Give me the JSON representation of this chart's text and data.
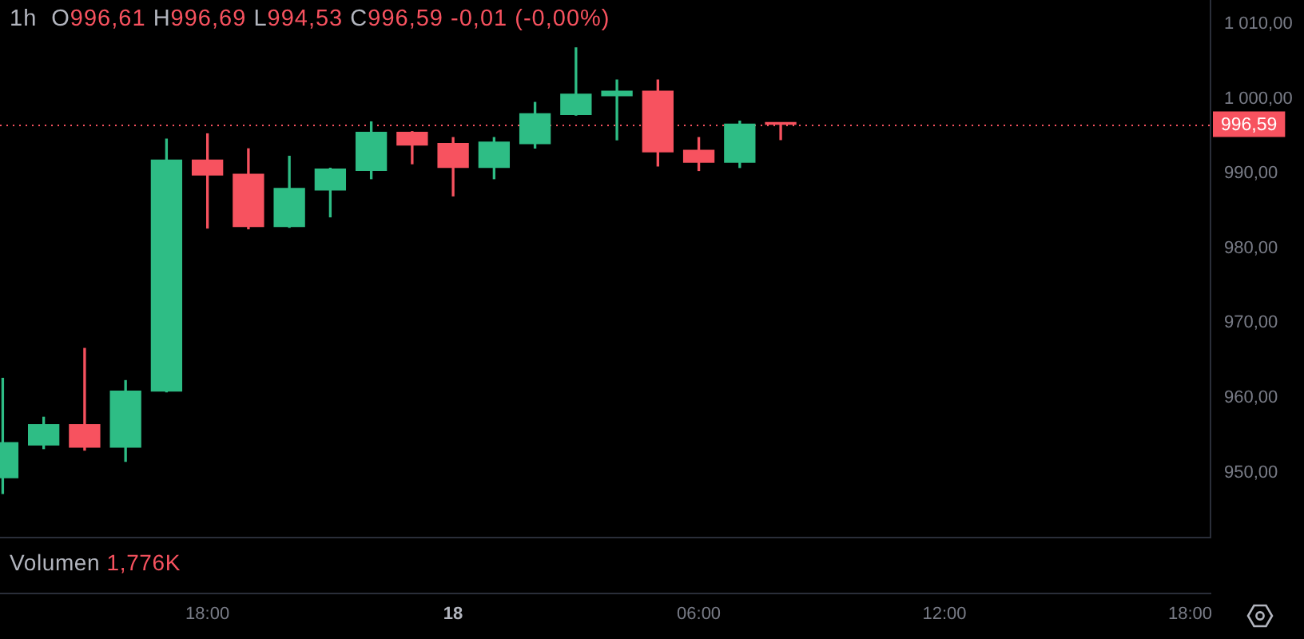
{
  "chart_data": {
    "type": "candlestick",
    "title": "1h",
    "subtitle": "O996,61 H996,69 L994,53 C996,59 -0,01 (-0,00%)",
    "annotations": [
      "Volumen 1,776K"
    ],
    "x": [
      "--09-17T13:00",
      "--09-17T14:00",
      "--09-17T15:00",
      "--09-17T16:00",
      "--09-17T17:00",
      "--09-17T18:00",
      "--09-17T19:00",
      "--09-17T20:00",
      "--09-17T21:00",
      "--09-17T22:00",
      "--09-17T23:00",
      "--09-18T00:00",
      "--09-18T01:00",
      "--09-18T02:00",
      "--09-18T03:00",
      "--09-18T04:00",
      "--09-18T05:00",
      "--09-18T06:00",
      "--09-18T07:00",
      "--09-18T08:00"
    ],
    "ohlc": [
      [
        949.3,
        962.6,
        947.2,
        954.0
      ],
      [
        953.7,
        957.4,
        953.2,
        956.4
      ],
      [
        956.4,
        966.6,
        953.0,
        953.4
      ],
      [
        953.4,
        962.3,
        951.5,
        960.9
      ],
      [
        960.9,
        994.6,
        960.8,
        991.8
      ],
      [
        991.8,
        995.3,
        982.7,
        989.8
      ],
      [
        989.9,
        993.3,
        982.6,
        982.9
      ],
      [
        982.9,
        992.3,
        982.8,
        988.0
      ],
      [
        987.8,
        990.7,
        984.2,
        990.6
      ],
      [
        990.4,
        996.9,
        989.3,
        995.5
      ],
      [
        995.5,
        995.6,
        991.3,
        993.8
      ],
      [
        994.0,
        994.8,
        987.0,
        990.8
      ],
      [
        990.8,
        994.8,
        989.3,
        994.2
      ],
      [
        994.0,
        999.5,
        993.4,
        998.0
      ],
      [
        997.9,
        1006.8,
        997.8,
        1000.6
      ],
      [
        1000.4,
        1002.5,
        994.5,
        1001.0
      ],
      [
        1001.0,
        1002.5,
        991.0,
        992.9
      ],
      [
        993.1,
        994.8,
        990.4,
        991.5
      ],
      [
        991.5,
        997.0,
        990.8,
        996.6
      ],
      [
        996.61,
        996.69,
        994.53,
        996.59
      ]
    ],
    "colors": [
      "#2ebd85",
      "#2ebd85",
      "#f7525f",
      "#2ebd85",
      "#2ebd85",
      "#f7525f",
      "#f7525f",
      "#2ebd85",
      "#2ebd85",
      "#2ebd85",
      "#f7525f",
      "#f7525f",
      "#2ebd85",
      "#2ebd85",
      "#2ebd85",
      "#2ebd85",
      "#f7525f",
      "#f7525f",
      "#2ebd85",
      "#f7525f"
    ],
    "xlim": [
      "--09-17T12:56",
      "--09-18T18:31"
    ],
    "xticks": [
      {
        "value": "--09-17T18:00",
        "label": "18:00"
      },
      {
        "value": "--09-18T00:00",
        "label": "18"
      },
      {
        "value": "--09-18T06:00",
        "label": "06:00"
      },
      {
        "value": "--09-18T12:00",
        "label": "12:00"
      },
      {
        "value": "--09-18T18:00",
        "label": "18:00"
      }
    ],
    "ylim": [
      941.2,
      1013.2
    ],
    "yticks": [
      {
        "value": 950,
        "label": "950,00"
      },
      {
        "value": 960,
        "label": "960,00"
      },
      {
        "value": 970,
        "label": "970,00"
      },
      {
        "value": 980,
        "label": "980,00"
      },
      {
        "value": 990,
        "label": "990,00"
      },
      {
        "value": 1000,
        "label": "1 000,00"
      },
      {
        "value": 1010,
        "label": "1 010,00"
      }
    ],
    "ref_lines": [
      {
        "axis": "y",
        "value": 996.59,
        "label": "996,59",
        "color": "#f7525f",
        "line_style": "dotted"
      }
    ]
  }
}
